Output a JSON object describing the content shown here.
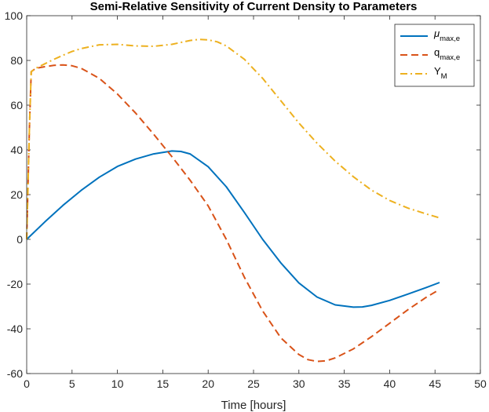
{
  "chart_data": {
    "type": "line",
    "title": "Semi-Relative Sensitivity of Current Density to Parameters",
    "xlabel": "Time [hours]",
    "ylabel": "",
    "xlim": [
      0,
      50
    ],
    "ylim": [
      -60,
      100
    ],
    "xticks": [
      0,
      5,
      10,
      15,
      20,
      25,
      30,
      35,
      40,
      45,
      50
    ],
    "yticks": [
      -60,
      -40,
      -20,
      0,
      20,
      40,
      60,
      80,
      100
    ],
    "grid": false,
    "legend_position": "top-right",
    "series": [
      {
        "name": "μmax,e",
        "symbol": "μ",
        "subscript": "max,e",
        "color": "#0072BD",
        "style": "solid",
        "x": [
          0,
          2,
          4,
          6,
          8,
          10,
          12,
          14,
          16,
          17,
          18,
          20,
          22,
          24,
          26,
          28,
          30,
          32,
          34,
          36,
          37,
          38,
          40,
          42,
          44,
          45.5
        ],
        "y": [
          0,
          7.8,
          15.2,
          21.9,
          27.8,
          32.6,
          35.9,
          38.2,
          39.5,
          39.3,
          38.2,
          32.5,
          23.5,
          12,
          0,
          -10.5,
          -19.5,
          -25.8,
          -29.3,
          -30.3,
          -30.2,
          -29.5,
          -27.3,
          -24.5,
          -21.6,
          -19.3
        ]
      },
      {
        "name": "qmax,e",
        "symbol": "q",
        "subscript": "max,e",
        "color": "#D95319",
        "style": "dashed",
        "x": [
          0,
          0.3,
          0.5,
          1,
          2,
          3,
          4,
          5,
          6,
          8,
          10,
          12,
          14,
          16,
          18,
          20,
          22,
          24,
          26,
          28,
          30,
          31,
          32,
          33,
          34,
          36,
          38,
          40,
          42,
          44,
          45.5
        ],
        "y": [
          0,
          50,
          75,
          76.5,
          77.2,
          77.8,
          78,
          77.6,
          76.5,
          72,
          65,
          56.5,
          47,
          37,
          26.5,
          15,
          0,
          -17,
          -32,
          -44,
          -51.5,
          -53.8,
          -54.6,
          -54.3,
          -53,
          -49,
          -43.5,
          -37.5,
          -31.5,
          -26,
          -22.4
        ]
      },
      {
        "name": "YM",
        "symbol": "Y",
        "subscript": "M",
        "color": "#EDB120",
        "style": "dashdot",
        "x": [
          0,
          0.3,
          0.5,
          1,
          2,
          3,
          4,
          5,
          6,
          8,
          10,
          12,
          14,
          16,
          18,
          19,
          20,
          21,
          22,
          24,
          26,
          28,
          30,
          32,
          34,
          36,
          38,
          40,
          42,
          44,
          45.5
        ],
        "y": [
          0,
          50,
          75,
          76.5,
          78.5,
          80.5,
          82.3,
          84,
          85.3,
          87,
          87.2,
          86.5,
          86.3,
          87.2,
          88.9,
          89.4,
          89.2,
          88.3,
          86.5,
          80.5,
          72,
          62,
          52,
          43,
          35,
          28,
          22,
          17.4,
          14,
          11.4,
          9.6
        ]
      }
    ]
  }
}
